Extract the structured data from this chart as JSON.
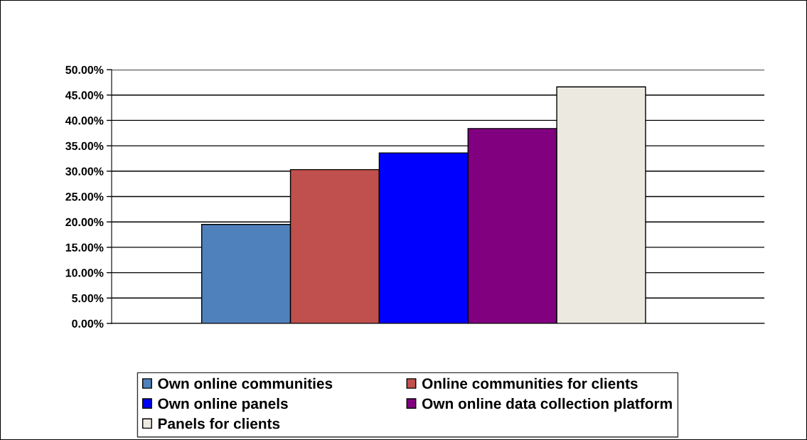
{
  "chart_data": {
    "type": "bar",
    "categories": [
      null
    ],
    "series": [
      {
        "name": "Own online communities",
        "color": "#4f81bd",
        "values": [
          19.5
        ]
      },
      {
        "name": "Online communities for clients",
        "color": "#c0504d",
        "values": [
          30.3
        ]
      },
      {
        "name": "Own online panels",
        "color": "#0000ff",
        "values": [
          33.6
        ]
      },
      {
        "name": "Own online data collection platform",
        "color": "#800080",
        "values": [
          38.4
        ]
      },
      {
        "name": "Panels for clients",
        "color": "#eceae0",
        "values": [
          46.6
        ]
      }
    ],
    "ylim": [
      0,
      50
    ],
    "yticks": [
      {
        "value": 0,
        "label": "0.00%"
      },
      {
        "value": 5,
        "label": "5.00%"
      },
      {
        "value": 10,
        "label": "10.00%"
      },
      {
        "value": 15,
        "label": "15.00%"
      },
      {
        "value": 20,
        "label": "20.00%"
      },
      {
        "value": 25,
        "label": "25.00%"
      },
      {
        "value": 30,
        "label": "30.00%"
      },
      {
        "value": 35,
        "label": "35.00%"
      },
      {
        "value": 40,
        "label": "40.00%"
      },
      {
        "value": 45,
        "label": "45.00%"
      },
      {
        "value": 50,
        "label": "50.00%"
      }
    ],
    "grid": "y",
    "legend": "bottom",
    "tick_labels": "y"
  }
}
